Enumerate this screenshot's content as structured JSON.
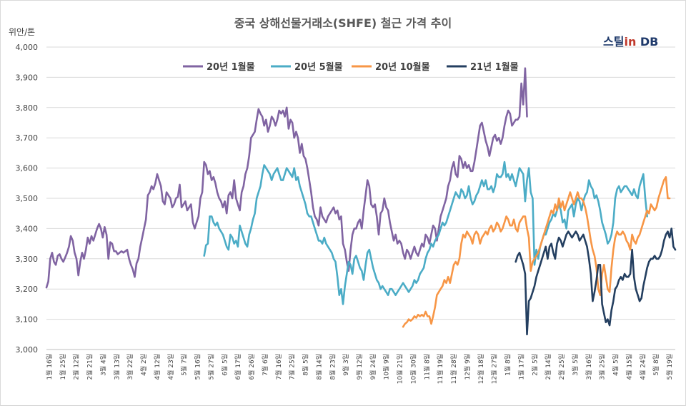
{
  "chart_data": {
    "type": "line",
    "title": "중국 상해선물거래소(SHFE) 철근 가격 추이",
    "ylabel": "위안/톤",
    "ylim": [
      3000,
      4000
    ],
    "yticks": [
      "3,000",
      "3,100",
      "3,200",
      "3,300",
      "3,400",
      "3,500",
      "3,600",
      "3,700",
      "3,800",
      "3,900",
      "4,000"
    ],
    "x_categories": [
      "1월 16일",
      "1월 25일",
      "2월 12일",
      "2월 21일",
      "3월 4일",
      "3월 13일",
      "3월 22일",
      "4월 2일",
      "4월 12일",
      "4월 23일",
      "5월 7일",
      "5월 16일",
      "5월 27일",
      "6월 5일",
      "6월 17일",
      "6월 26일",
      "7월 6일",
      "7월 16일",
      "7월 25일",
      "8월 5일",
      "8월 14일",
      "8월 23일",
      "9월 3일",
      "9월 12일",
      "9월 24일",
      "10월 9일",
      "10월 21일",
      "10월 30일",
      "11월 8일",
      "11월 19일",
      "11월 28일",
      "12월 9일",
      "12월 18일",
      "12월 27일",
      "1월 8일",
      "1월 17일",
      "2월 5일",
      "2월 14일",
      "2월 25일",
      "3월 5일",
      "3월 16일",
      "3월 25일",
      "4월 5일",
      "4월 15일",
      "4월 24일",
      "5월 8일",
      "5월 19일"
    ],
    "grid": true,
    "legend_position": "top",
    "series": [
      {
        "name": "20년 1월물",
        "color": "#8064a2",
        "start": 0,
        "values": [
          3205,
          3225,
          3300,
          3320,
          3290,
          3280,
          3310,
          3315,
          3300,
          3290,
          3305,
          3320,
          3340,
          3375,
          3360,
          3320,
          3300,
          3245,
          3290,
          3320,
          3300,
          3330,
          3370,
          3350,
          3375,
          3360,
          3380,
          3400,
          3415,
          3400,
          3370,
          3405,
          3380,
          3300,
          3355,
          3350,
          3325,
          3325,
          3315,
          3320,
          3325,
          3320,
          3325,
          3330,
          3300,
          3280,
          3265,
          3240,
          3285,
          3300,
          3340,
          3370,
          3400,
          3430,
          3510,
          3520,
          3540,
          3530,
          3550,
          3580,
          3560,
          3540,
          3490,
          3480,
          3520,
          3510,
          3500,
          3470,
          3480,
          3500,
          3505,
          3545,
          3470,
          3480,
          3490,
          3460,
          3470,
          3480,
          3420,
          3400,
          3420,
          3440,
          3500,
          3520,
          3620,
          3610,
          3580,
          3590,
          3560,
          3570,
          3550,
          3520,
          3500,
          3490,
          3470,
          3490,
          3450,
          3510,
          3520,
          3500,
          3560,
          3500,
          3480,
          3460,
          3520,
          3540,
          3580,
          3600,
          3640,
          3700,
          3710,
          3720,
          3760,
          3795,
          3780,
          3770,
          3740,
          3760,
          3720,
          3740,
          3770,
          3760,
          3740,
          3760,
          3790,
          3780,
          3790,
          3770,
          3800,
          3730,
          3760,
          3750,
          3700,
          3720,
          3700,
          3650,
          3680,
          3640,
          3630,
          3600,
          3560,
          3520,
          3470,
          3440,
          3430,
          3410,
          3470,
          3440,
          3430,
          3420,
          3440,
          3450,
          3460,
          3470,
          3450,
          3460,
          3430,
          3440,
          3350,
          3330,
          3290,
          3260,
          3330,
          3380,
          3400,
          3400,
          3420,
          3430,
          3400,
          3460,
          3510,
          3560,
          3540,
          3480,
          3470,
          3480,
          3440,
          3380,
          3450,
          3460,
          3500,
          3470,
          3460,
          3420,
          3390,
          3360,
          3380,
          3350,
          3360,
          3350,
          3320,
          3300,
          3330,
          3320,
          3300,
          3320,
          3340,
          3320,
          3310,
          3330,
          3350,
          3340,
          3380,
          3370,
          3350,
          3380,
          3410,
          3400,
          3360,
          3400,
          3440,
          3460,
          3480,
          3500,
          3540,
          3560,
          3600,
          3620,
          3580,
          3570,
          3640,
          3630,
          3600,
          3620,
          3600,
          3610,
          3590,
          3590,
          3620,
          3660,
          3700,
          3740,
          3750,
          3720,
          3690,
          3670,
          3640,
          3670,
          3700,
          3710,
          3690,
          3700,
          3680,
          3700,
          3740,
          3770,
          3790,
          3780,
          3740,
          3750,
          3760,
          3760,
          3770,
          3880,
          3810,
          3930,
          3770
        ]
      },
      {
        "name": "20년 5월물",
        "color": "#4bacc6",
        "start": 84,
        "values": [
          3310,
          3345,
          3350,
          3440,
          3440,
          3420,
          3410,
          3420,
          3400,
          3390,
          3380,
          3360,
          3340,
          3330,
          3380,
          3370,
          3350,
          3360,
          3340,
          3410,
          3390,
          3370,
          3350,
          3340,
          3380,
          3400,
          3430,
          3450,
          3500,
          3520,
          3540,
          3580,
          3610,
          3600,
          3590,
          3580,
          3560,
          3580,
          3590,
          3600,
          3580,
          3560,
          3560,
          3580,
          3600,
          3590,
          3580,
          3570,
          3600,
          3560,
          3570,
          3540,
          3520,
          3500,
          3480,
          3450,
          3440,
          3440,
          3420,
          3400,
          3380,
          3360,
          3360,
          3350,
          3370,
          3350,
          3340,
          3330,
          3320,
          3300,
          3290,
          3240,
          3180,
          3200,
          3150,
          3210,
          3250,
          3290,
          3280,
          3250,
          3300,
          3310,
          3290,
          3270,
          3260,
          3230,
          3280,
          3320,
          3330,
          3300,
          3270,
          3250,
          3230,
          3220,
          3200,
          3210,
          3200,
          3190,
          3180,
          3200,
          3200,
          3190,
          3180,
          3190,
          3200,
          3210,
          3220,
          3210,
          3200,
          3190,
          3200,
          3210,
          3230,
          3220,
          3230,
          3250,
          3260,
          3270,
          3300,
          3320,
          3330,
          3350,
          3340,
          3360,
          3370,
          3380,
          3400,
          3420,
          3410,
          3420,
          3440,
          3460,
          3480,
          3500,
          3520,
          3510,
          3500,
          3530,
          3520,
          3500,
          3510,
          3540,
          3500,
          3480,
          3490,
          3510,
          3520,
          3540,
          3560,
          3540,
          3560,
          3530,
          3530,
          3540,
          3520,
          3540,
          3580,
          3570,
          3570,
          3580,
          3620,
          3570,
          3580,
          3560,
          3580,
          3560,
          3540,
          3570,
          3600,
          3590,
          3580,
          3490,
          3560,
          3600,
          3520,
          3500,
          3280,
          3330,
          3300,
          3340,
          3360,
          3380,
          3380,
          3400,
          3420,
          3430,
          3450,
          3440,
          3460,
          3480,
          3460,
          3420,
          3430,
          3400,
          3460,
          3470,
          3480,
          3440,
          3480,
          3500,
          3490,
          3460,
          3490,
          3510,
          3520,
          3560,
          3540,
          3530,
          3500,
          3510,
          3490,
          3460,
          3420,
          3400,
          3380,
          3350,
          3360,
          3380,
          3420,
          3500,
          3530,
          3540,
          3520,
          3530,
          3540,
          3540,
          3530,
          3520,
          3510,
          3530,
          3510,
          3500,
          3540,
          3560,
          3580,
          3500,
          3440
        ]
      },
      {
        "name": "20년 10월물",
        "color": "#f79646",
        "start": 190,
        "values": [
          3075,
          3085,
          3090,
          3100,
          3095,
          3100,
          3110,
          3105,
          3115,
          3110,
          3115,
          3110,
          3125,
          3110,
          3110,
          3085,
          3110,
          3140,
          3180,
          3190,
          3200,
          3210,
          3230,
          3220,
          3240,
          3220,
          3250,
          3280,
          3290,
          3280,
          3300,
          3350,
          3380,
          3370,
          3390,
          3380,
          3370,
          3350,
          3380,
          3390,
          3380,
          3350,
          3370,
          3380,
          3390,
          3380,
          3400,
          3410,
          3390,
          3400,
          3420,
          3410,
          3390,
          3400,
          3420,
          3440,
          3430,
          3410,
          3410,
          3430,
          3400,
          3390,
          3420,
          3430,
          3440,
          3440,
          3400,
          3370,
          3260,
          3290,
          3300,
          3310,
          3320,
          3340,
          3360,
          3380,
          3400,
          3420,
          3440,
          3460,
          3450,
          3480,
          3460,
          3500,
          3470,
          3490,
          3460,
          3480,
          3500,
          3520,
          3500,
          3480,
          3500,
          3520,
          3500,
          3500,
          3490,
          3470,
          3440,
          3400,
          3360,
          3330,
          3310,
          3270,
          3200,
          3180,
          3250,
          3280,
          3240,
          3200,
          3190,
          3270,
          3330,
          3370,
          3390,
          3380,
          3380,
          3390,
          3380,
          3360,
          3350,
          3330,
          3380,
          3360,
          3350,
          3370,
          3380,
          3400,
          3420,
          3440,
          3460,
          3450,
          3480,
          3470,
          3460,
          3470,
          3500,
          3520,
          3540,
          3560,
          3570,
          3500,
          3500
        ]
      },
      {
        "name": "21년 1월물",
        "color": "#243f60",
        "start": 250,
        "values": [
          3290,
          3310,
          3320,
          3300,
          3280,
          3250,
          3050,
          3160,
          3170,
          3190,
          3210,
          3240,
          3260,
          3280,
          3300,
          3320,
          3340,
          3300,
          3340,
          3350,
          3320,
          3300,
          3350,
          3370,
          3360,
          3340,
          3360,
          3380,
          3390,
          3380,
          3370,
          3380,
          3390,
          3380,
          3360,
          3370,
          3380,
          3360,
          3340,
          3300,
          3250,
          3160,
          3190,
          3230,
          3280,
          3280,
          3150,
          3120,
          3090,
          3100,
          3080,
          3130,
          3160,
          3200,
          3210,
          3230,
          3240,
          3230,
          3250,
          3240,
          3240,
          3250,
          3330,
          3240,
          3200,
          3180,
          3160,
          3170,
          3210,
          3240,
          3270,
          3290,
          3300,
          3300,
          3310,
          3300,
          3300,
          3310,
          3330,
          3360,
          3380,
          3390,
          3370,
          3400,
          3340,
          3330
        ]
      }
    ]
  },
  "logo": {
    "text1": "스틸",
    "text2": "in",
    "text3": " DB"
  }
}
